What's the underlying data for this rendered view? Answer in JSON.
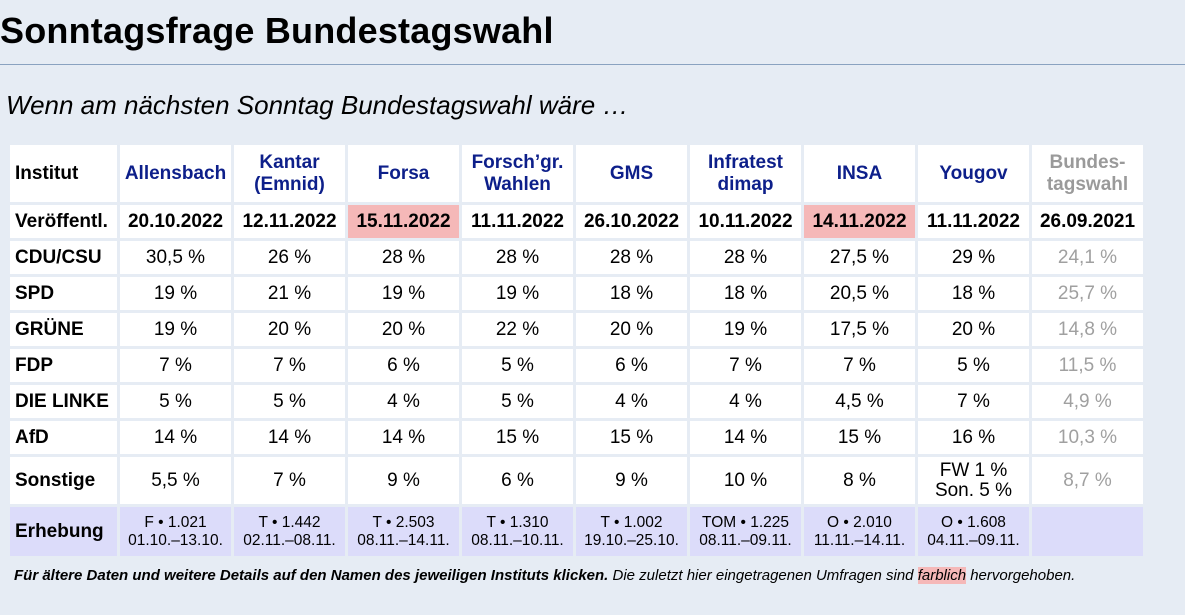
{
  "title": "Sonntagsfrage Bundestagswahl",
  "subtitle": "Wenn am nächsten Sonntag Bundestagswahl wäre …",
  "table": {
    "header_label": "Institut",
    "institutes": [
      "Allensbach",
      "Kantar\n(Emnid)",
      "Forsa",
      "Forsch’gr.\nWahlen",
      "GMS",
      "Infratest\ndimap",
      "INSA",
      "Yougov"
    ],
    "election_header": "Bundes-\ntagswahl",
    "date_label": "Veröffentl.",
    "dates": [
      "20.10.2022",
      "12.11.2022",
      "15.11.2022",
      "11.11.2022",
      "26.10.2022",
      "10.11.2022",
      "14.11.2022",
      "11.11.2022"
    ],
    "election_date": "26.09.2021",
    "parties": [
      {
        "name": "CDU/CSU",
        "values": [
          "30,5 %",
          "26 %",
          "28 %",
          "28 %",
          "28 %",
          "28 %",
          "27,5 %",
          "29 %"
        ],
        "election": "24,1 %"
      },
      {
        "name": "SPD",
        "values": [
          "19 %",
          "21 %",
          "19 %",
          "19 %",
          "18 %",
          "18 %",
          "20,5 %",
          "18 %"
        ],
        "election": "25,7 %"
      },
      {
        "name": "GRÜNE",
        "values": [
          "19 %",
          "20 %",
          "20 %",
          "22 %",
          "20 %",
          "19 %",
          "17,5 %",
          "20 %"
        ],
        "election": "14,8 %"
      },
      {
        "name": "FDP",
        "values": [
          "7 %",
          "7 %",
          "6 %",
          "5 %",
          "6 %",
          "7 %",
          "7 %",
          "5 %"
        ],
        "election": "11,5 %"
      },
      {
        "name": "DIE LINKE",
        "values": [
          "5 %",
          "5 %",
          "4 %",
          "5 %",
          "4 %",
          "4 %",
          "4,5 %",
          "7 %"
        ],
        "election": "4,9 %"
      },
      {
        "name": "AfD",
        "values": [
          "14 %",
          "14 %",
          "14 %",
          "15 %",
          "15 %",
          "14 %",
          "15 %",
          "16 %"
        ],
        "election": "10,3 %"
      }
    ],
    "sonstige": {
      "name": "Sonstige",
      "values": [
        "5,5 %",
        "7 %",
        "9 %",
        "6 %",
        "9 %",
        "10 %",
        "8 %",
        "FW 1 %\nSon. 5 %"
      ],
      "election": "8,7 %"
    },
    "erhebung": {
      "name": "Erhebung",
      "values": [
        "F • 1.021\n01.10.–13.10.",
        "T • 1.442\n02.11.–08.11.",
        "T • 2.503\n08.11.–14.11.",
        "T • 1.310\n08.11.–10.11.",
        "T • 1.002\n19.10.–25.10.",
        "TOM • 1.225\n08.11.–09.11.",
        "O • 2.010\n11.11.–14.11.",
        "O • 1.608\n04.11.–09.11."
      ],
      "election": ""
    },
    "highlighted_dates": [
      2,
      6
    ]
  },
  "footnote": {
    "bold": "Für ältere Daten und weitere Details auf den Namen des jeweiligen Instituts klicken.",
    "text": " Die zuletzt hier eingetragenen Umfragen sind ",
    "highlight_word": "farblich",
    "end": " hervorgehoben."
  },
  "colors": {
    "background": "#e6ecf4",
    "institute_link": "#0d1f8a",
    "highlight": "#f5b8b8",
    "erhebung_row": "#dcdcfa",
    "election_text": "#a0a0a0"
  }
}
